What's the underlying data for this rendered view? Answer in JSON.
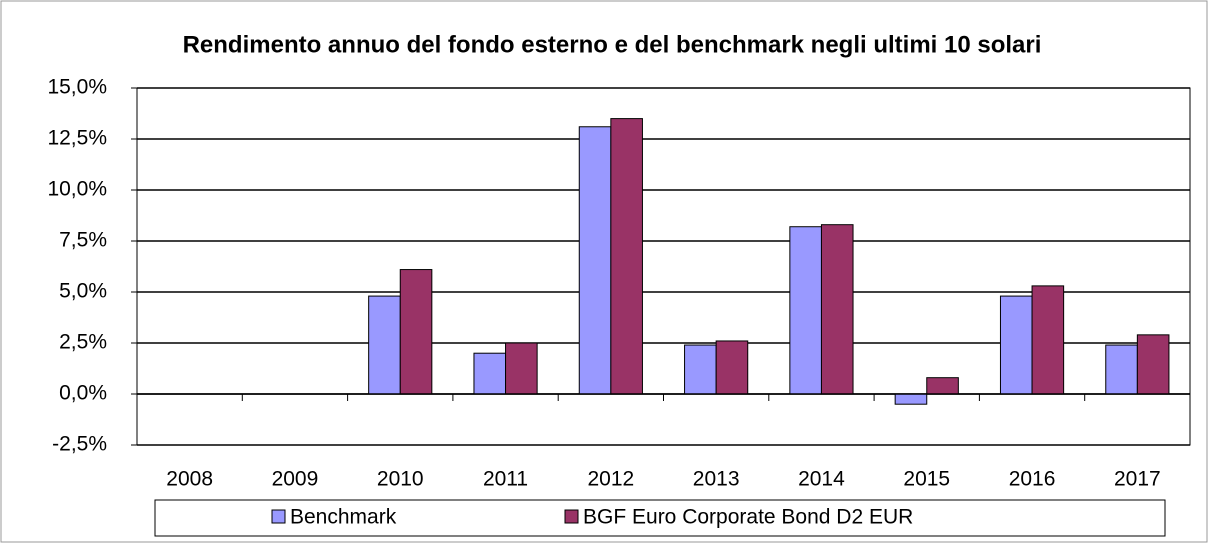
{
  "chart_data": {
    "type": "bar",
    "title": "Rendimento annuo del fondo esterno e del benchmark negli ultimi 10 solari",
    "categories": [
      "2008",
      "2009",
      "2010",
      "2011",
      "2012",
      "2013",
      "2014",
      "2015",
      "2016",
      "2017"
    ],
    "series": [
      {
        "name": "Benchmark",
        "color": "#9999ff",
        "values": [
          null,
          null,
          4.8,
          2.0,
          13.1,
          2.4,
          8.2,
          -0.5,
          4.8,
          2.4
        ]
      },
      {
        "name": "BGF Euro Corporate Bond D2 EUR",
        "color": "#993366",
        "values": [
          null,
          null,
          6.1,
          2.5,
          13.5,
          2.6,
          8.3,
          0.8,
          5.3,
          2.9
        ]
      }
    ],
    "ylim": [
      -2.5,
      15
    ],
    "yticks": [
      {
        "value": -2.5,
        "label": "-2,5%"
      },
      {
        "value": 0,
        "label": "0,0%"
      },
      {
        "value": 2.5,
        "label": "2,5%"
      },
      {
        "value": 5,
        "label": "5,0%"
      },
      {
        "value": 7.5,
        "label": "7,5%"
      },
      {
        "value": 10,
        "label": "10,0%"
      },
      {
        "value": 12.5,
        "label": "12,5%"
      },
      {
        "value": 15,
        "label": "15,0%"
      }
    ],
    "grid": true,
    "legend": "bottom"
  }
}
